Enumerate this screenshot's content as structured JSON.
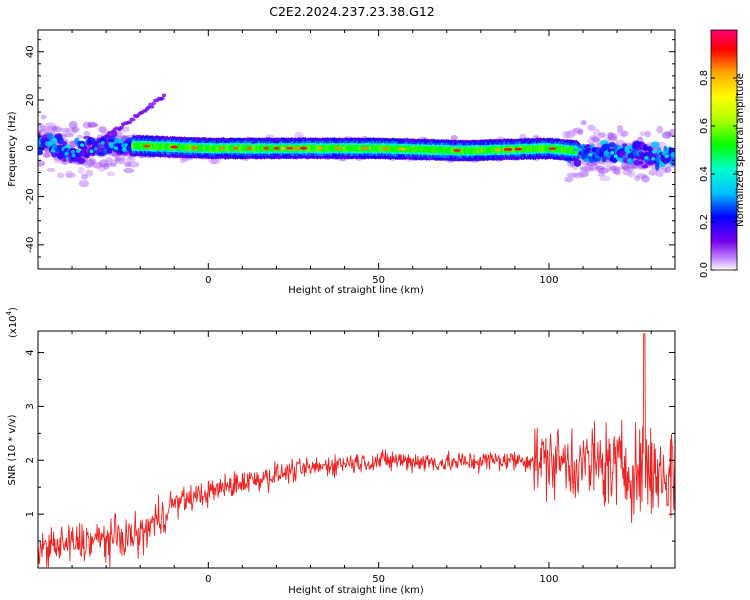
{
  "figure_title": "C2E2.2024.237.23.38.G12",
  "chart_data": [
    {
      "type": "heatmap",
      "title": "C2E2.2024.237.23.38.G12",
      "xlabel": "Height of straight line (km)",
      "ylabel": "Frequency (Hz)",
      "xlim": [
        -50,
        137
      ],
      "ylim": [
        -50,
        49
      ],
      "x_ticks": [
        0,
        50,
        100
      ],
      "y_ticks": [
        -40,
        -20,
        0,
        20,
        40
      ],
      "colorbar": {
        "label": "Normalized spectral amplitude",
        "range": [
          0,
          1
        ],
        "ticks": [
          0.0,
          0.2,
          0.4,
          0.6,
          0.8
        ],
        "colors": [
          "#ffffff",
          "#cc99ff",
          "#7700ee",
          "#0000ff",
          "#00bfff",
          "#00ffcc",
          "#00ff00",
          "#aaff00",
          "#ffff00",
          "#ffaa00",
          "#ff0000",
          "#ff0077"
        ]
      },
      "ridge": [
        {
          "x": -50,
          "y": 3
        },
        {
          "x": -40,
          "y": -2
        },
        {
          "x": -30,
          "y": 1
        },
        {
          "x": -20,
          "y": 1
        },
        {
          "x": 0,
          "y": 0
        },
        {
          "x": 50,
          "y": 0
        },
        {
          "x": 75,
          "y": -1
        },
        {
          "x": 100,
          "y": 0
        },
        {
          "x": 115,
          "y": -2
        },
        {
          "x": 137,
          "y": -4
        }
      ],
      "side_branch": [
        {
          "x": -30,
          "y": 5
        },
        {
          "x": -20,
          "y": 14
        },
        {
          "x": -13,
          "y": 22
        }
      ],
      "grid": false
    },
    {
      "type": "line",
      "xlabel": "Height of straight line (km)",
      "ylabel": "SNR (10 * v/v)",
      "y_multiplier": "(x10",
      "y_multiplier_exp": "4",
      "xlim": [
        -50,
        137
      ],
      "ylim": [
        0,
        4.4
      ],
      "x_ticks": [
        0,
        50,
        100
      ],
      "y_ticks": [
        1,
        2,
        3,
        4
      ],
      "color": "#ee2222",
      "trend": [
        {
          "x": -50,
          "y": 0.35
        },
        {
          "x": -35,
          "y": 0.5
        },
        {
          "x": -20,
          "y": 0.6
        },
        {
          "x": -10,
          "y": 1.2
        },
        {
          "x": 0,
          "y": 1.4
        },
        {
          "x": 10,
          "y": 1.6
        },
        {
          "x": 25,
          "y": 1.8
        },
        {
          "x": 40,
          "y": 1.95
        },
        {
          "x": 55,
          "y": 2.0
        },
        {
          "x": 70,
          "y": 1.95
        },
        {
          "x": 85,
          "y": 2.0
        },
        {
          "x": 100,
          "y": 2.0
        },
        {
          "x": 115,
          "y": 1.9
        },
        {
          "x": 130,
          "y": 1.8
        },
        {
          "x": 137,
          "y": 1.7
        }
      ],
      "peak": {
        "x": 128,
        "y": 4.35
      },
      "grid": false
    }
  ]
}
